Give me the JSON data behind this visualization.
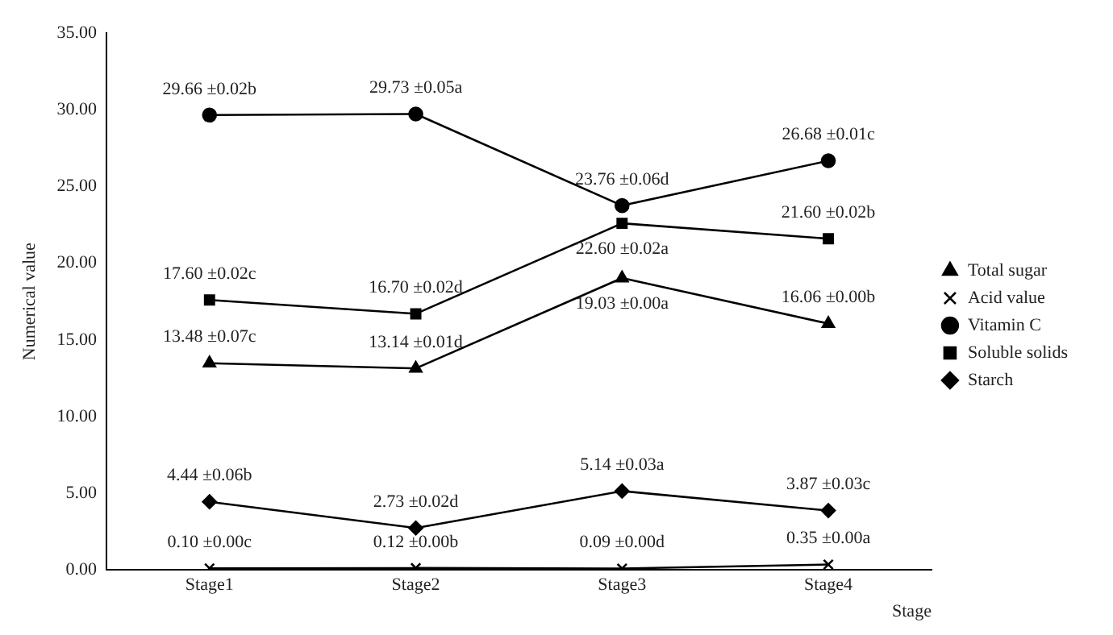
{
  "chart_data": {
    "type": "line",
    "xlabel": "Stage",
    "ylabel": "Numerical value",
    "categories": [
      "Stage1",
      "Stage2",
      "Stage3",
      "Stage4"
    ],
    "ylim": [
      0,
      35
    ],
    "yticks": [
      {
        "value": 0,
        "label": "0.00"
      },
      {
        "value": 5,
        "label": "5.00"
      },
      {
        "value": 10,
        "label": "10.00"
      },
      {
        "value": 15,
        "label": "15.00"
      },
      {
        "value": 20,
        "label": "20.00"
      },
      {
        "value": 25,
        "label": "25.00"
      },
      {
        "value": 30,
        "label": "30.00"
      },
      {
        "value": 35,
        "label": "35.00"
      }
    ],
    "grid": false,
    "legend": "right",
    "line_style": "solid",
    "series": [
      {
        "name": "Total sugar",
        "color": "#000000",
        "marker": "triangle",
        "values": [
          13.48,
          13.14,
          19.03,
          16.06
        ],
        "value_labels": [
          "13.48 ±0.07c",
          "13.14 ±0.01d",
          "19.03 ±0.00a",
          "16.06 ±0.00b"
        ]
      },
      {
        "name": "Acid value",
        "color": "#000000",
        "marker": "cross",
        "values": [
          0.1,
          0.12,
          0.09,
          0.35
        ],
        "value_labels": [
          "0.10 ±0.00c",
          "0.12 ±0.00b",
          "0.09 ±0.00d",
          "0.35 ±0.00a"
        ]
      },
      {
        "name": "Vitamin C",
        "color": "#000000",
        "marker": "circle",
        "values": [
          29.66,
          29.73,
          23.76,
          26.68
        ],
        "value_labels": [
          "29.66 ±0.02b",
          "29.73 ±0.05a",
          "23.76 ±0.06d",
          "26.68 ±0.01c"
        ]
      },
      {
        "name": "Soluble solids",
        "color": "#000000",
        "marker": "square",
        "values": [
          17.6,
          16.7,
          22.6,
          21.6
        ],
        "value_labels": [
          "17.60 ±0.02c",
          "16.70 ±0.02d",
          "22.60 ±0.02a",
          "21.60 ±0.02b"
        ]
      },
      {
        "name": "Starch",
        "color": "#000000",
        "marker": "diamond",
        "values": [
          4.44,
          2.73,
          5.14,
          3.87
        ],
        "value_labels": [
          "4.44 ±0.06b",
          "2.73 ±0.02d",
          "5.14 ±0.03a",
          "3.87 ±0.03c"
        ]
      }
    ]
  }
}
